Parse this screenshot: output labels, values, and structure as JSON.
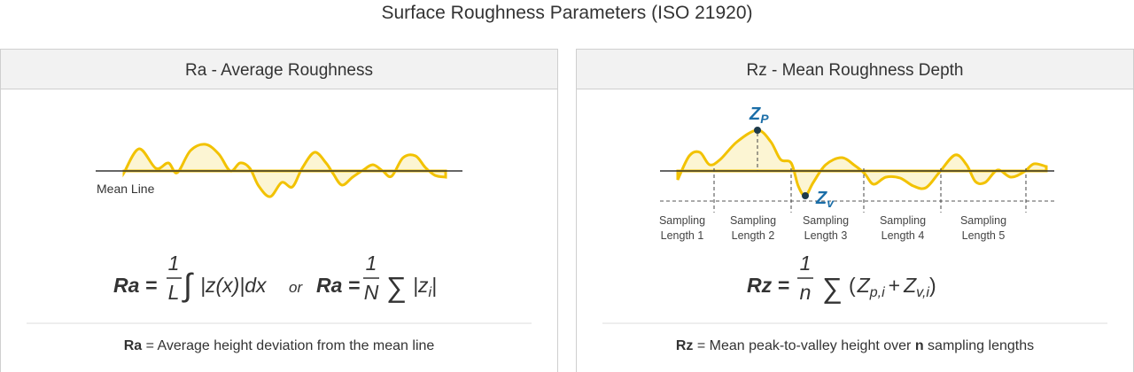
{
  "title": "Surface Roughness Parameters (ISO 21920)",
  "panels": [
    {
      "header": "Ra - Average  Roughness",
      "mean_line_label": "Mean Line",
      "formula": {
        "lhs": "Ra =",
        "numerator": "1",
        "denominator": "L",
        "operator": "∫",
        "body": "|z(x)|dx",
        "connector": "or",
        "lhs2": "Ra =",
        "numerator2": "1",
        "denominator2": "N",
        "operator2": "∑",
        "body2": "|z",
        "body2_sub": "i",
        "body2_end": "|"
      },
      "caption": [
        "Ra",
        "= Average height deviation from the mean line"
      ]
    },
    {
      "header": "Rz - Mean Roughness Depth",
      "peak_label": {
        "main": "Z",
        "sub": "P"
      },
      "valley_label": {
        "main": "Z",
        "sub": "v"
      },
      "sampling_lengths": [
        [
          "Sampling",
          "Length 1"
        ],
        [
          "Sampling",
          "Length 2"
        ],
        [
          "Sampling",
          "Length 3"
        ],
        [
          "Sampling",
          "Length 4"
        ],
        [
          "Sampling",
          "Length 5"
        ]
      ],
      "formula": {
        "lhs": "Rz =",
        "numerator": "1",
        "denominator": "n",
        "operator": "∑",
        "terms": [
          "(",
          "Z",
          "p,i",
          "+",
          "Z",
          "v,i",
          ")"
        ]
      },
      "caption": [
        "Rz",
        "= Mean peak-to-valley height over",
        "n",
        "sampling lengths"
      ]
    }
  ]
}
